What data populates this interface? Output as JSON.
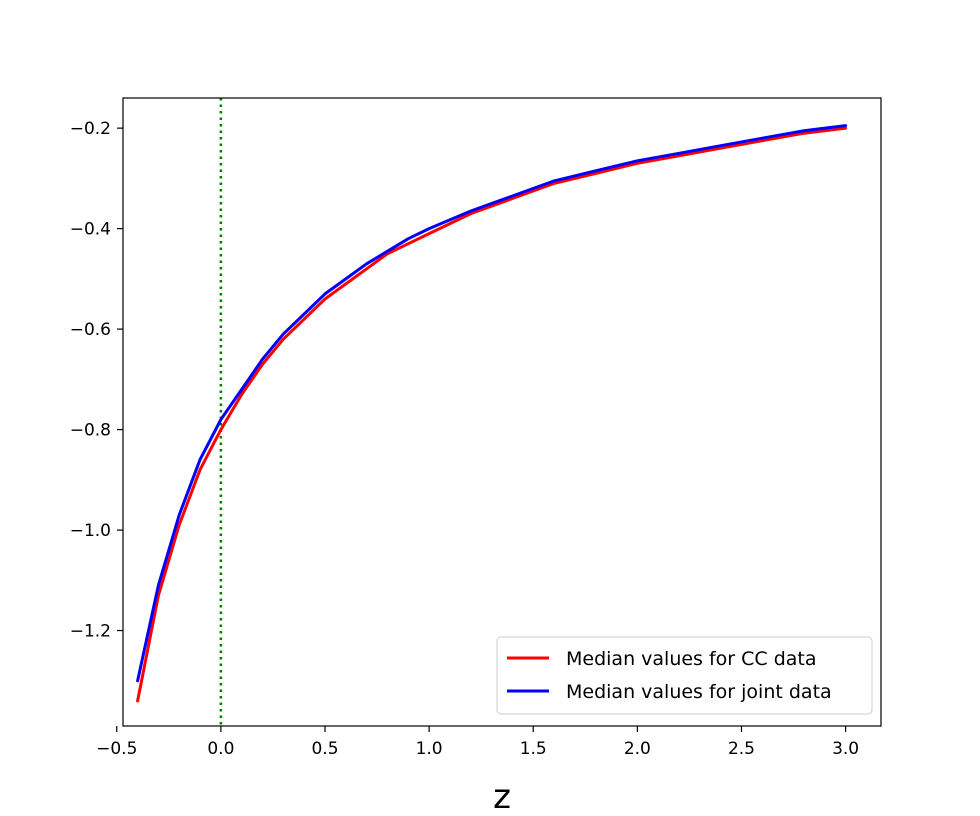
{
  "chart_data": {
    "type": "line",
    "title": "",
    "xlabel": "z",
    "ylabel": "",
    "xlim": [
      -0.47,
      3.17
    ],
    "ylim": [
      -1.39,
      -0.14
    ],
    "xticks": [
      -0.5,
      0.0,
      0.5,
      1.0,
      1.5,
      2.0,
      2.5,
      3.0
    ],
    "xtick_labels": [
      "−0.5",
      "0.0",
      "0.5",
      "1.0",
      "1.5",
      "2.0",
      "2.5",
      "3.0"
    ],
    "yticks": [
      -1.2,
      -1.0,
      -0.8,
      -0.6,
      -0.4,
      -0.2
    ],
    "ytick_labels": [
      "−1.2",
      "−1.0",
      "−0.8",
      "−0.6",
      "−0.4",
      "−0.2"
    ],
    "grid": false,
    "legend_position": "lower-right",
    "vline": {
      "x": 0.0,
      "color": "#008000",
      "style": "dotted"
    },
    "series": [
      {
        "name": "Median values for CC data",
        "color": "#ff0000",
        "x": [
          -0.4,
          -0.3,
          -0.2,
          -0.1,
          0.0,
          0.1,
          0.2,
          0.3,
          0.4,
          0.5,
          0.6,
          0.7,
          0.8,
          0.9,
          1.0,
          1.2,
          1.4,
          1.6,
          1.8,
          2.0,
          2.2,
          2.4,
          2.6,
          2.8,
          3.0
        ],
        "y": [
          -1.34,
          -1.13,
          -0.99,
          -0.88,
          -0.8,
          -0.73,
          -0.67,
          -0.62,
          -0.58,
          -0.54,
          -0.51,
          -0.48,
          -0.45,
          -0.43,
          -0.41,
          -0.37,
          -0.34,
          -0.31,
          -0.29,
          -0.27,
          -0.255,
          -0.24,
          -0.225,
          -0.21,
          -0.2
        ]
      },
      {
        "name": "Median values for joint data",
        "color": "#0000ff",
        "x": [
          -0.4,
          -0.3,
          -0.2,
          -0.1,
          0.0,
          0.1,
          0.2,
          0.3,
          0.4,
          0.5,
          0.6,
          0.7,
          0.8,
          0.9,
          1.0,
          1.2,
          1.4,
          1.6,
          1.8,
          2.0,
          2.2,
          2.4,
          2.6,
          2.8,
          3.0
        ],
        "y": [
          -1.3,
          -1.11,
          -0.97,
          -0.86,
          -0.78,
          -0.72,
          -0.66,
          -0.61,
          -0.57,
          -0.53,
          -0.5,
          -0.47,
          -0.445,
          -0.42,
          -0.4,
          -0.365,
          -0.335,
          -0.305,
          -0.285,
          -0.265,
          -0.25,
          -0.235,
          -0.22,
          -0.205,
          -0.195
        ]
      }
    ]
  }
}
